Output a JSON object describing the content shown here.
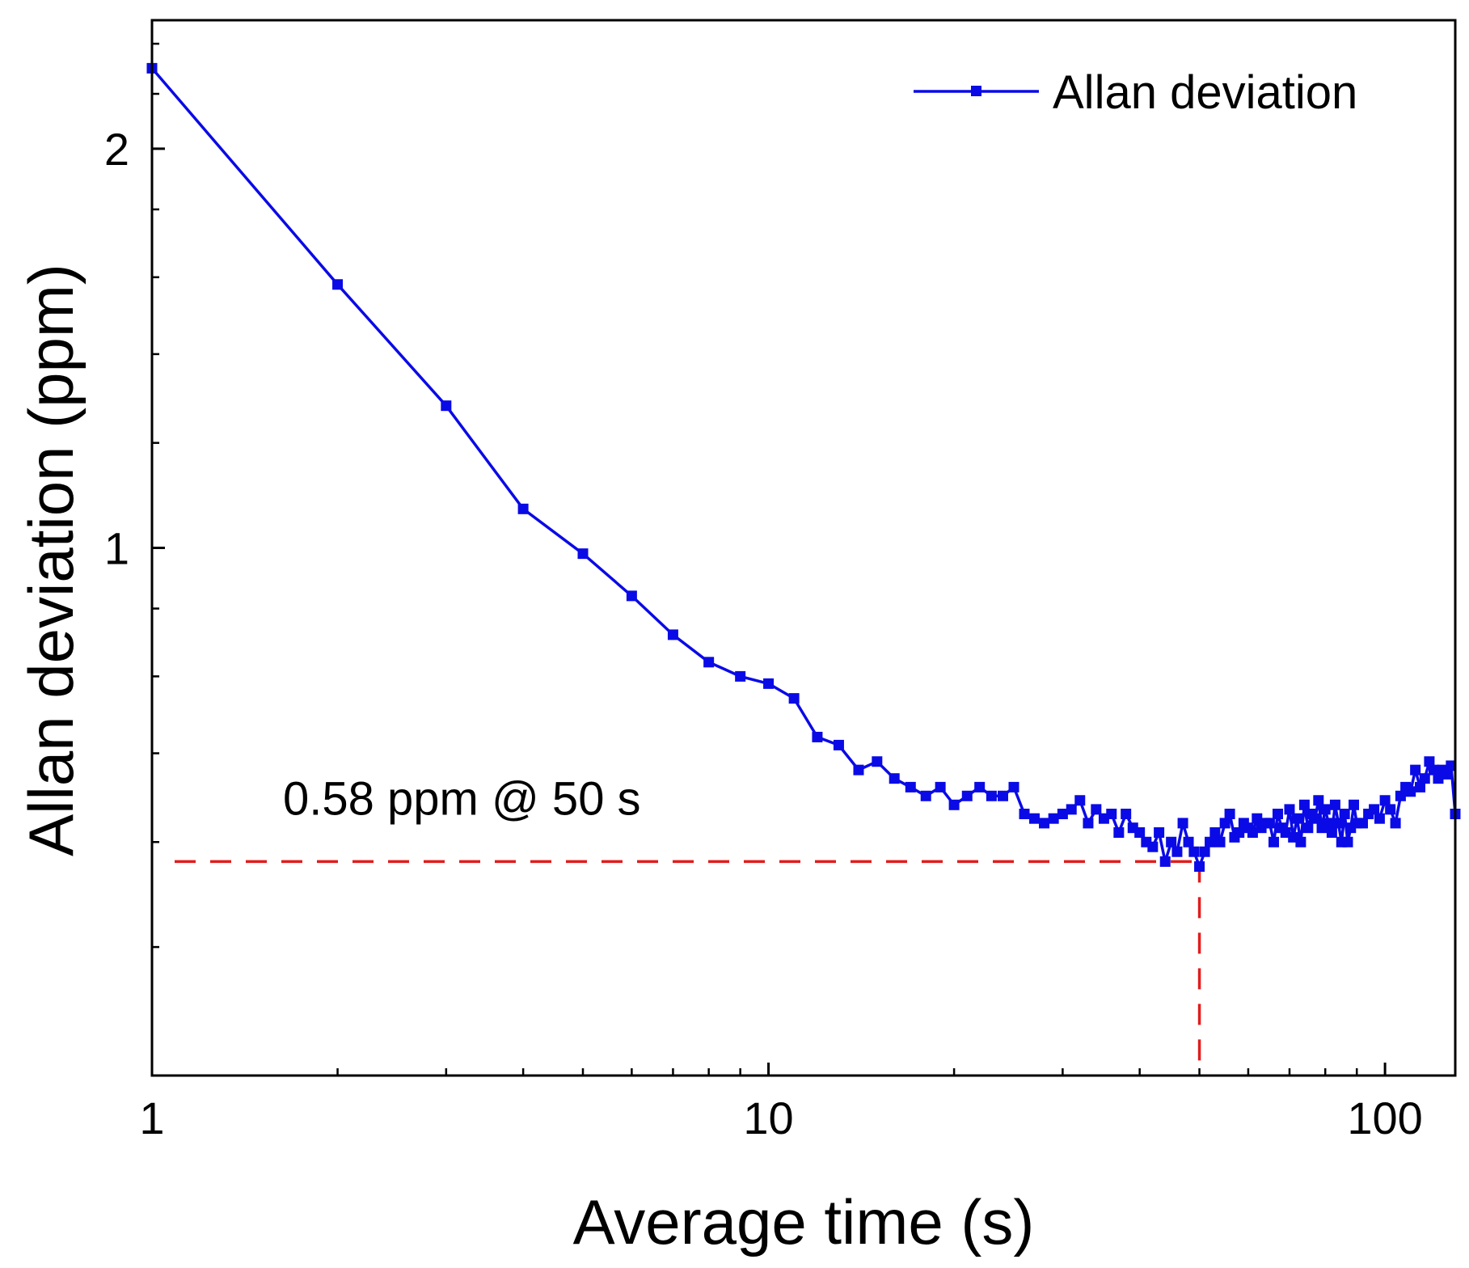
{
  "chart_data": {
    "type": "line",
    "xlabel": "Average time (s)",
    "ylabel": "Allan deviation (ppm)",
    "x_scale": "log",
    "y_scale": "log",
    "xlim": [
      1,
      130
    ],
    "ylim": [
      0.4,
      2.5
    ],
    "x_ticks": [
      {
        "value": 1,
        "label": "1"
      },
      {
        "value": 10,
        "label": "10"
      },
      {
        "value": 100,
        "label": "100"
      }
    ],
    "y_ticks": [
      {
        "value": 1,
        "label": "1"
      },
      {
        "value": 2,
        "label": "2"
      }
    ],
    "legend": {
      "position": "top-right",
      "entries": [
        "Allan deviation"
      ]
    },
    "annotation": {
      "text": "0.58 ppm @ 50 s",
      "x": 50,
      "y": 0.58
    },
    "grid": false,
    "colors": {
      "series": "#0a0ae6",
      "annotation_line": "#e11d1d",
      "axes": "#000000"
    },
    "series": [
      {
        "name": "Allan deviation",
        "marker": "square",
        "points": [
          [
            1,
            2.3
          ],
          [
            2,
            1.58
          ],
          [
            3,
            1.28
          ],
          [
            4,
            1.07
          ],
          [
            5,
            0.99
          ],
          [
            6,
            0.92
          ],
          [
            7,
            0.86
          ],
          [
            8,
            0.82
          ],
          [
            9,
            0.8
          ],
          [
            10,
            0.79
          ],
          [
            11,
            0.77
          ],
          [
            12,
            0.72
          ],
          [
            13,
            0.71
          ],
          [
            14,
            0.68
          ],
          [
            15,
            0.69
          ],
          [
            16,
            0.67
          ],
          [
            17,
            0.66
          ],
          [
            18,
            0.65
          ],
          [
            19,
            0.66
          ],
          [
            20,
            0.64
          ],
          [
            21,
            0.65
          ],
          [
            22,
            0.66
          ],
          [
            23,
            0.65
          ],
          [
            24,
            0.65
          ],
          [
            25,
            0.66
          ],
          [
            26,
            0.63
          ],
          [
            27,
            0.625
          ],
          [
            28,
            0.62
          ],
          [
            29,
            0.625
          ],
          [
            30,
            0.63
          ],
          [
            31,
            0.635
          ],
          [
            32,
            0.645
          ],
          [
            33,
            0.62
          ],
          [
            34,
            0.635
          ],
          [
            35,
            0.625
          ],
          [
            36,
            0.63
          ],
          [
            37,
            0.61
          ],
          [
            38,
            0.63
          ],
          [
            39,
            0.615
          ],
          [
            40,
            0.61
          ],
          [
            41,
            0.6
          ],
          [
            42,
            0.595
          ],
          [
            43,
            0.61
          ],
          [
            44,
            0.58
          ],
          [
            45,
            0.6
          ],
          [
            46,
            0.59
          ],
          [
            47,
            0.62
          ],
          [
            48,
            0.6
          ],
          [
            49,
            0.59
          ],
          [
            50,
            0.575
          ],
          [
            51,
            0.59
          ],
          [
            52,
            0.6
          ],
          [
            53,
            0.61
          ],
          [
            54,
            0.6
          ],
          [
            55,
            0.62
          ],
          [
            56,
            0.63
          ],
          [
            57,
            0.605
          ],
          [
            58,
            0.61
          ],
          [
            59,
            0.62
          ],
          [
            60,
            0.615
          ],
          [
            61,
            0.61
          ],
          [
            62,
            0.625
          ],
          [
            63,
            0.615
          ],
          [
            64,
            0.62
          ],
          [
            65,
            0.62
          ],
          [
            66,
            0.6
          ],
          [
            67,
            0.63
          ],
          [
            68,
            0.615
          ],
          [
            69,
            0.61
          ],
          [
            70,
            0.635
          ],
          [
            71,
            0.605
          ],
          [
            72,
            0.625
          ],
          [
            73,
            0.6
          ],
          [
            74,
            0.64
          ],
          [
            75,
            0.615
          ],
          [
            76,
            0.63
          ],
          [
            77,
            0.625
          ],
          [
            78,
            0.645
          ],
          [
            79,
            0.615
          ],
          [
            80,
            0.635
          ],
          [
            81,
            0.62
          ],
          [
            82,
            0.61
          ],
          [
            83,
            0.64
          ],
          [
            84,
            0.62
          ],
          [
            85,
            0.6
          ],
          [
            86,
            0.63
          ],
          [
            87,
            0.6
          ],
          [
            88,
            0.615
          ],
          [
            89,
            0.64
          ],
          [
            90,
            0.62
          ],
          [
            92,
            0.62
          ],
          [
            94,
            0.63
          ],
          [
            96,
            0.635
          ],
          [
            98,
            0.625
          ],
          [
            100,
            0.645
          ],
          [
            102,
            0.635
          ],
          [
            104,
            0.62
          ],
          [
            106,
            0.65
          ],
          [
            108,
            0.66
          ],
          [
            110,
            0.655
          ],
          [
            112,
            0.68
          ],
          [
            114,
            0.66
          ],
          [
            116,
            0.67
          ],
          [
            118,
            0.69
          ],
          [
            120,
            0.68
          ],
          [
            122,
            0.67
          ],
          [
            124,
            0.68
          ],
          [
            126,
            0.675
          ],
          [
            128,
            0.685
          ],
          [
            130,
            0.63
          ]
        ]
      }
    ]
  }
}
